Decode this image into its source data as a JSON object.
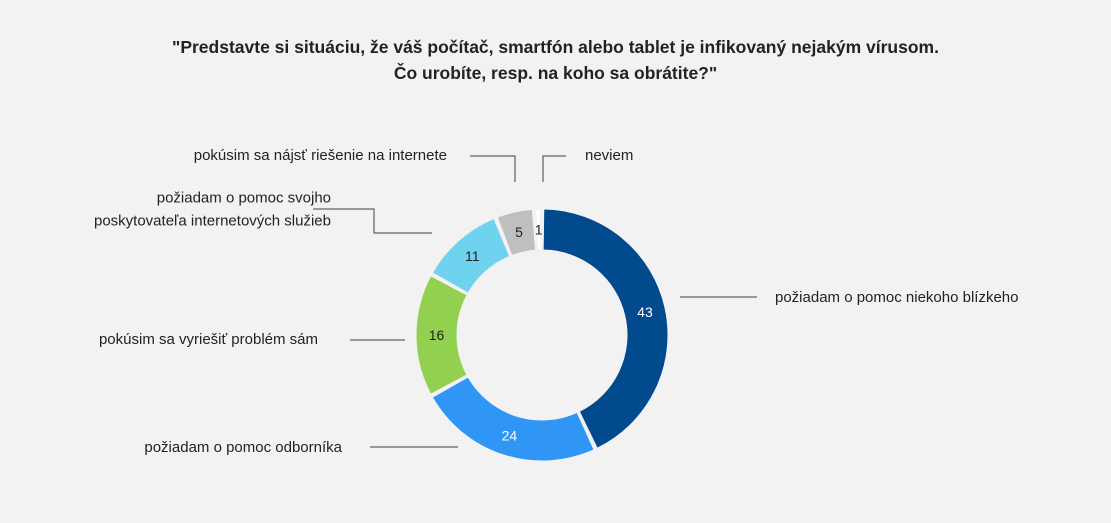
{
  "chart_data": {
    "type": "pie",
    "variant": "donut",
    "title_lines": [
      "\"Predstavte si situáciu, že váš počítač, smartfón alebo tablet je infikovaný nejakým vírusom.",
      "Čo urobíte, resp. na koho sa obrátite?\""
    ],
    "slices": [
      {
        "label": [
          "požiadam o pomoc niekoho blízkeho"
        ],
        "value": 43,
        "value_text": "43",
        "color": "#004a8d",
        "text_color": "#ffffff"
      },
      {
        "label": [
          "požiadam o pomoc odborníka"
        ],
        "value": 24,
        "value_text": "24",
        "color": "#2f96f5",
        "text_color": "#ffffff"
      },
      {
        "label": [
          "pokúsim sa vyriešiť problém sám"
        ],
        "value": 16,
        "value_text": "16",
        "color": "#92d050",
        "text_color": "#222222"
      },
      {
        "label": [
          "požiadam o pomoc svojho",
          "poskytovateľa internetových služieb"
        ],
        "value": 11,
        "value_text": "11",
        "color": "#6fd2ee",
        "text_color": "#222222"
      },
      {
        "label": [
          "pokúsim sa nájsť riešenie na internete"
        ],
        "value": 5,
        "value_text": "5",
        "color": "#bfbfbf",
        "text_color": "#222222"
      },
      {
        "label": [
          "neviem"
        ],
        "value": 1,
        "value_text": "1",
        "color": "#ffffff",
        "text_color": "#222222"
      }
    ]
  }
}
